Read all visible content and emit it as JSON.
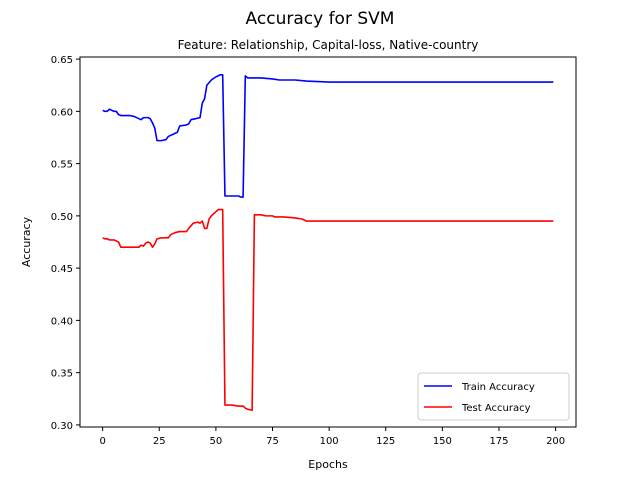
{
  "chart_data": {
    "type": "line",
    "title": "Accuracy for SVM",
    "subtitle": "Feature: Relationship, Capital-loss, Native-country",
    "xlabel": "Epochs",
    "ylabel": "Accuracy",
    "xlim": [
      -10,
      209
    ],
    "ylim": [
      0.298,
      0.652
    ],
    "xticks": [
      0,
      25,
      50,
      75,
      100,
      125,
      150,
      175,
      200
    ],
    "yticks": [
      0.3,
      0.35,
      0.4,
      0.45,
      0.5,
      0.55,
      0.6,
      0.65
    ],
    "ytick_labels": [
      "0.30",
      "0.35",
      "0.40",
      "0.45",
      "0.50",
      "0.55",
      "0.60",
      "0.65"
    ],
    "grid": false,
    "legend_position": "lower right",
    "series": [
      {
        "name": "Train Accuracy",
        "color": "#0000ff",
        "points": [
          [
            0,
            0.601
          ],
          [
            1,
            0.6
          ],
          [
            2,
            0.6
          ],
          [
            3,
            0.602
          ],
          [
            4,
            0.601
          ],
          [
            5,
            0.6
          ],
          [
            6,
            0.6
          ],
          [
            7,
            0.597
          ],
          [
            8,
            0.596
          ],
          [
            10,
            0.596
          ],
          [
            12,
            0.596
          ],
          [
            14,
            0.595
          ],
          [
            16,
            0.593
          ],
          [
            17,
            0.592
          ],
          [
            18,
            0.594
          ],
          [
            20,
            0.594
          ],
          [
            21,
            0.593
          ],
          [
            22,
            0.589
          ],
          [
            23,
            0.584
          ],
          [
            24,
            0.572
          ],
          [
            26,
            0.572
          ],
          [
            28,
            0.573
          ],
          [
            29,
            0.576
          ],
          [
            31,
            0.578
          ],
          [
            33,
            0.58
          ],
          [
            34,
            0.586
          ],
          [
            37,
            0.587
          ],
          [
            38,
            0.588
          ],
          [
            39,
            0.592
          ],
          [
            41,
            0.593
          ],
          [
            43,
            0.594
          ],
          [
            44,
            0.608
          ],
          [
            45,
            0.612
          ],
          [
            46,
            0.625
          ],
          [
            48,
            0.63
          ],
          [
            50,
            0.633
          ],
          [
            52,
            0.635
          ],
          [
            53,
            0.635
          ],
          [
            54,
            0.519
          ],
          [
            57,
            0.519
          ],
          [
            60,
            0.519
          ],
          [
            61,
            0.518
          ],
          [
            62,
            0.518
          ],
          [
            63,
            0.634
          ],
          [
            64,
            0.632
          ],
          [
            66,
            0.632
          ],
          [
            70,
            0.632
          ],
          [
            75,
            0.631
          ],
          [
            78,
            0.63
          ],
          [
            85,
            0.63
          ],
          [
            90,
            0.629
          ],
          [
            100,
            0.628
          ],
          [
            110,
            0.628
          ],
          [
            125,
            0.628
          ],
          [
            150,
            0.628
          ],
          [
            175,
            0.628
          ],
          [
            199,
            0.628
          ]
        ]
      },
      {
        "name": "Test Accuracy",
        "color": "#ff0000",
        "points": [
          [
            0,
            0.479
          ],
          [
            1,
            0.478
          ],
          [
            2,
            0.478
          ],
          [
            3,
            0.477
          ],
          [
            5,
            0.477
          ],
          [
            6,
            0.476
          ],
          [
            7,
            0.475
          ],
          [
            8,
            0.47
          ],
          [
            10,
            0.47
          ],
          [
            14,
            0.47
          ],
          [
            16,
            0.47
          ],
          [
            17,
            0.472
          ],
          [
            18,
            0.471
          ],
          [
            19,
            0.474
          ],
          [
            20,
            0.475
          ],
          [
            21,
            0.474
          ],
          [
            22,
            0.47
          ],
          [
            23,
            0.473
          ],
          [
            24,
            0.478
          ],
          [
            26,
            0.479
          ],
          [
            29,
            0.479
          ],
          [
            30,
            0.482
          ],
          [
            32,
            0.484
          ],
          [
            34,
            0.485
          ],
          [
            37,
            0.485
          ],
          [
            38,
            0.488
          ],
          [
            40,
            0.493
          ],
          [
            42,
            0.494
          ],
          [
            43,
            0.493
          ],
          [
            44,
            0.495
          ],
          [
            45,
            0.488
          ],
          [
            46,
            0.488
          ],
          [
            47,
            0.497
          ],
          [
            48,
            0.5
          ],
          [
            50,
            0.504
          ],
          [
            51,
            0.506
          ],
          [
            53,
            0.506
          ],
          [
            54,
            0.319
          ],
          [
            57,
            0.319
          ],
          [
            60,
            0.318
          ],
          [
            62,
            0.318
          ],
          [
            63,
            0.316
          ],
          [
            64,
            0.315
          ],
          [
            66,
            0.314
          ],
          [
            67,
            0.501
          ],
          [
            68,
            0.501
          ],
          [
            70,
            0.501
          ],
          [
            72,
            0.5
          ],
          [
            75,
            0.5
          ],
          [
            76,
            0.499
          ],
          [
            80,
            0.499
          ],
          [
            85,
            0.498
          ],
          [
            88,
            0.497
          ],
          [
            90,
            0.495
          ],
          [
            100,
            0.495
          ],
          [
            110,
            0.495
          ],
          [
            125,
            0.495
          ],
          [
            150,
            0.495
          ],
          [
            175,
            0.495
          ],
          [
            199,
            0.495
          ]
        ]
      }
    ]
  }
}
